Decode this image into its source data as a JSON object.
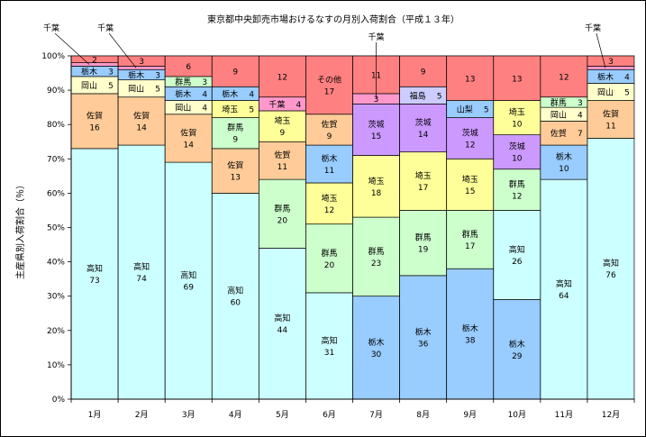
{
  "chart_data": {
    "type": "bar",
    "stacked": true,
    "title": "東京都中央卸売市場おけるなすの月別入荷割合（平成１３年）",
    "ylabel": "主産県別入荷割合（％）",
    "xlabel": "",
    "ylim": [
      0,
      100
    ],
    "yticks": [
      "0%",
      "10%",
      "20%",
      "30%",
      "40%",
      "50%",
      "60%",
      "70%",
      "80%",
      "90%",
      "100%"
    ],
    "categories": [
      "1月",
      "2月",
      "3月",
      "4月",
      "5月",
      "6月",
      "7月",
      "8月",
      "9月",
      "10月",
      "11月",
      "12月"
    ],
    "colors": {
      "高知": "#ccffff",
      "栃木": "#99ccff",
      "群馬": "#ccffcc",
      "埼玉": "#ffff99",
      "茨城": "#cc99ff",
      "佐賀": "#ffcc99",
      "岡山": "#ffffcc",
      "千葉": "#ff99cc",
      "山梨": "#99ccff",
      "福島": "#ccccff",
      "その他": "#ff8080"
    },
    "months": [
      {
        "segments": [
          {
            "name": "高知",
            "value": 73,
            "label": "高知",
            "value_label": "73"
          },
          {
            "name": "佐賀",
            "value": 16,
            "label": "佐賀",
            "value_label": "16"
          },
          {
            "name": "岡山",
            "value": 5,
            "label": "岡山",
            "value_label": "5"
          },
          {
            "name": "栃木",
            "value": 3,
            "label": "栃木",
            "value_label": "3"
          },
          {
            "name": "千葉",
            "value": 1,
            "label": "",
            "value_label": ""
          },
          {
            "name": "その他",
            "value": 2,
            "label": "",
            "value_label": "2"
          }
        ]
      },
      {
        "segments": [
          {
            "name": "高知",
            "value": 74,
            "label": "高知",
            "value_label": "74"
          },
          {
            "name": "佐賀",
            "value": 14,
            "label": "佐賀",
            "value_label": "14"
          },
          {
            "name": "岡山",
            "value": 5,
            "label": "岡山",
            "value_label": "5"
          },
          {
            "name": "栃木",
            "value": 3,
            "label": "栃木",
            "value_label": "3"
          },
          {
            "name": "千葉",
            "value": 1,
            "label": "",
            "value_label": ""
          },
          {
            "name": "その他",
            "value": 3,
            "label": "",
            "value_label": "3"
          }
        ]
      },
      {
        "segments": [
          {
            "name": "高知",
            "value": 69,
            "label": "高知",
            "value_label": "69"
          },
          {
            "name": "佐賀",
            "value": 14,
            "label": "佐賀",
            "value_label": "14"
          },
          {
            "name": "岡山",
            "value": 4,
            "label": "岡山",
            "value_label": "4"
          },
          {
            "name": "栃木",
            "value": 4,
            "label": "栃木",
            "value_label": "4"
          },
          {
            "name": "群馬",
            "value": 3,
            "label": "群馬",
            "value_label": "3"
          },
          {
            "name": "その他",
            "value": 6,
            "label": "",
            "value_label": "6"
          }
        ]
      },
      {
        "segments": [
          {
            "name": "高知",
            "value": 60,
            "label": "高知",
            "value_label": "60"
          },
          {
            "name": "佐賀",
            "value": 13,
            "label": "佐賀",
            "value_label": "13"
          },
          {
            "name": "群馬",
            "value": 9,
            "label": "群馬",
            "value_label": "9"
          },
          {
            "name": "埼玉",
            "value": 5,
            "label": "埼玉",
            "value_label": "5"
          },
          {
            "name": "栃木",
            "value": 4,
            "label": "栃木",
            "value_label": "4"
          },
          {
            "name": "その他",
            "value": 9,
            "label": "",
            "value_label": "9"
          }
        ]
      },
      {
        "segments": [
          {
            "name": "高知",
            "value": 44,
            "label": "高知",
            "value_label": "44"
          },
          {
            "name": "群馬",
            "value": 20,
            "label": "群馬",
            "value_label": "20"
          },
          {
            "name": "佐賀",
            "value": 11,
            "label": "佐賀",
            "value_label": "11"
          },
          {
            "name": "埼玉",
            "value": 9,
            "label": "埼玉",
            "value_label": "9"
          },
          {
            "name": "千葉",
            "value": 4,
            "label": "千葉",
            "value_label": "4"
          },
          {
            "name": "その他",
            "value": 12,
            "label": "",
            "value_label": "12"
          }
        ]
      },
      {
        "segments": [
          {
            "name": "高知",
            "value": 31,
            "label": "高知",
            "value_label": "31"
          },
          {
            "name": "群馬",
            "value": 20,
            "label": "群馬",
            "value_label": "20"
          },
          {
            "name": "埼玉",
            "value": 12,
            "label": "埼玉",
            "value_label": "12"
          },
          {
            "name": "栃木",
            "value": 11,
            "label": "栃木",
            "value_label": "11"
          },
          {
            "name": "佐賀",
            "value": 9,
            "label": "佐賀",
            "value_label": "9"
          },
          {
            "name": "その他",
            "value": 17,
            "label": "その他",
            "value_label": "17"
          }
        ]
      },
      {
        "segments": [
          {
            "name": "栃木",
            "value": 30,
            "label": "栃木",
            "value_label": "30"
          },
          {
            "name": "群馬",
            "value": 23,
            "label": "群馬",
            "value_label": "23"
          },
          {
            "name": "埼玉",
            "value": 18,
            "label": "埼玉",
            "value_label": "18"
          },
          {
            "name": "茨城",
            "value": 15,
            "label": "茨城",
            "value_label": "15"
          },
          {
            "name": "千葉",
            "value": 3,
            "label": "",
            "value_label": "3"
          },
          {
            "name": "その他",
            "value": 11,
            "label": "",
            "value_label": "11"
          }
        ]
      },
      {
        "segments": [
          {
            "name": "栃木",
            "value": 36,
            "label": "栃木",
            "value_label": "36"
          },
          {
            "name": "群馬",
            "value": 19,
            "label": "群馬",
            "value_label": "19"
          },
          {
            "name": "埼玉",
            "value": 17,
            "label": "埼玉",
            "value_label": "17"
          },
          {
            "name": "茨城",
            "value": 14,
            "label": "茨城",
            "value_label": "14"
          },
          {
            "name": "福島",
            "value": 5,
            "label": "福島",
            "value_label": "5"
          },
          {
            "name": "その他",
            "value": 9,
            "label": "",
            "value_label": "9"
          }
        ]
      },
      {
        "segments": [
          {
            "name": "栃木",
            "value": 38,
            "label": "栃木",
            "value_label": "38"
          },
          {
            "name": "群馬",
            "value": 17,
            "label": "群馬",
            "value_label": "17"
          },
          {
            "name": "埼玉",
            "value": 15,
            "label": "埼玉",
            "value_label": "15"
          },
          {
            "name": "茨城",
            "value": 12,
            "label": "茨城",
            "value_label": "12"
          },
          {
            "name": "山梨",
            "value": 5,
            "label": "山梨",
            "value_label": "5"
          },
          {
            "name": "その他",
            "value": 13,
            "label": "",
            "value_label": "13"
          }
        ]
      },
      {
        "segments": [
          {
            "name": "栃木",
            "value": 29,
            "label": "栃木",
            "value_label": "29"
          },
          {
            "name": "高知",
            "value": 26,
            "label": "高知",
            "value_label": "26"
          },
          {
            "name": "群馬",
            "value": 12,
            "label": "群馬",
            "value_label": "12"
          },
          {
            "name": "茨城",
            "value": 10,
            "label": "茨城",
            "value_label": "10"
          },
          {
            "name": "埼玉",
            "value": 10,
            "label": "埼玉",
            "value_label": "10"
          },
          {
            "name": "その他",
            "value": 13,
            "label": "",
            "value_label": "13"
          }
        ]
      },
      {
        "segments": [
          {
            "name": "高知",
            "value": 64,
            "label": "高知",
            "value_label": "64"
          },
          {
            "name": "栃木",
            "value": 10,
            "label": "栃木",
            "value_label": "10"
          },
          {
            "name": "佐賀",
            "value": 7,
            "label": "佐賀",
            "value_label": "7"
          },
          {
            "name": "岡山",
            "value": 4,
            "label": "岡山",
            "value_label": "4"
          },
          {
            "name": "群馬",
            "value": 3,
            "label": "群馬",
            "value_label": "3"
          },
          {
            "name": "その他",
            "value": 12,
            "label": "",
            "value_label": "12"
          }
        ]
      },
      {
        "segments": [
          {
            "name": "高知",
            "value": 76,
            "label": "高知",
            "value_label": "76"
          },
          {
            "name": "佐賀",
            "value": 11,
            "label": "佐賀",
            "value_label": "11"
          },
          {
            "name": "岡山",
            "value": 5,
            "label": "岡山",
            "value_label": "5"
          },
          {
            "name": "栃木",
            "value": 4,
            "label": "栃木",
            "value_label": "4"
          },
          {
            "name": "千葉",
            "value": 1,
            "label": "",
            "value_label": ""
          },
          {
            "name": "その他",
            "value": 3,
            "label": "",
            "value_label": "3"
          }
        ]
      }
    ],
    "annotations": [
      {
        "text": "千葉",
        "month": 0,
        "segment": "千葉"
      },
      {
        "text": "千葉",
        "month": 1,
        "segment": "千葉"
      },
      {
        "text": "千葉",
        "month": 6,
        "segment": "千葉"
      },
      {
        "text": "千葉",
        "month": 11,
        "segment": "千葉"
      }
    ]
  }
}
